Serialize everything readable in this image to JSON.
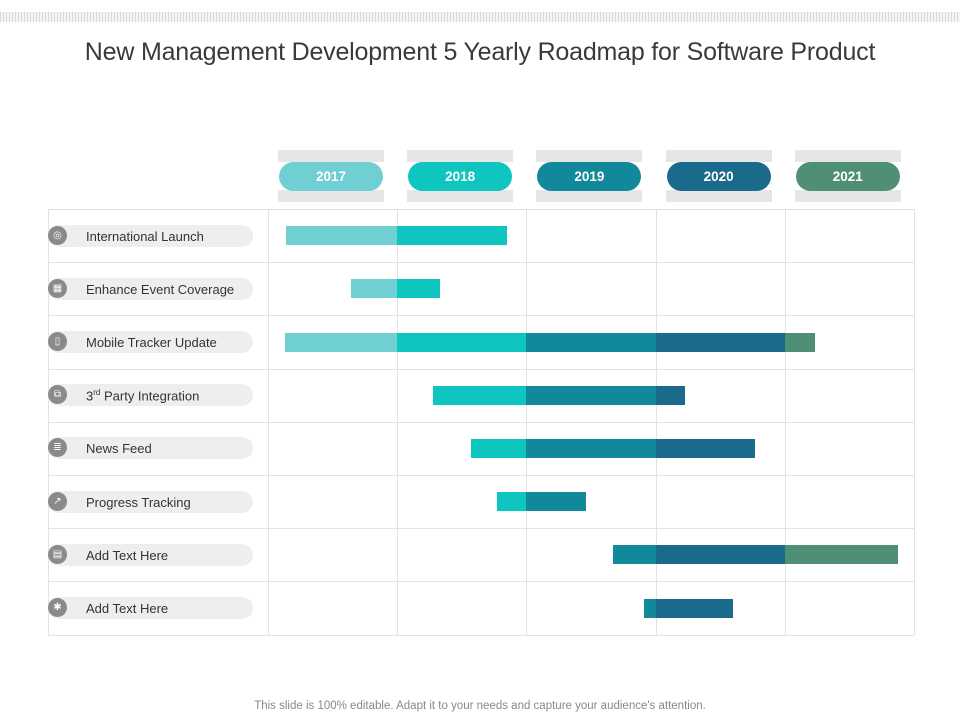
{
  "title": "New Management Development 5 Yearly Roadmap for Software Product",
  "footer": "This slide is 100% editable. Adapt it to your needs and capture your audience's attention.",
  "years": [
    {
      "label": "2017",
      "color": "#6fcfd3"
    },
    {
      "label": "2018",
      "color": "#0fc5c0"
    },
    {
      "label": "2019",
      "color": "#12899a"
    },
    {
      "label": "2020",
      "color": "#1a6a8c"
    },
    {
      "label": "2021",
      "color": "#4f8f76"
    }
  ],
  "tasks": [
    {
      "label_main": "International Launch",
      "icon": "globe-icon"
    },
    {
      "label_main": "Enhance Event Coverage",
      "icon": "calendar-icon"
    },
    {
      "label_main": "Mobile Tracker Update",
      "icon": "mobile-icon"
    },
    {
      "label_prefix": "3",
      "label_sup": "rd",
      "label_main": " Party Integration",
      "icon": "integration-icon"
    },
    {
      "label_main": "News Feed",
      "icon": "news-icon"
    },
    {
      "label_main": "Progress Tracking",
      "icon": "chart-icon"
    },
    {
      "label_main": "Add Text Here",
      "icon": "document-icon"
    },
    {
      "label_main": "Add Text Here",
      "icon": "settings-icon"
    }
  ],
  "chart_data": {
    "type": "gantt",
    "title": "New Management Development 5 Yearly Roadmap for Software Product",
    "x_axis": "year",
    "xlim": [
      2017,
      2022
    ],
    "categories": [
      "2017",
      "2018",
      "2019",
      "2020",
      "2021"
    ],
    "rows": [
      {
        "task": "International Launch",
        "start": 2017.14,
        "end": 2018.85
      },
      {
        "task": "Enhance Event Coverage",
        "start": 2017.64,
        "end": 2018.33
      },
      {
        "task": "Mobile Tracker Update",
        "start": 2017.13,
        "end": 2021.23
      },
      {
        "task": "3rd Party Integration",
        "start": 2018.28,
        "end": 2020.23
      },
      {
        "task": "News Feed",
        "start": 2018.57,
        "end": 2020.77
      },
      {
        "task": "Progress Tracking",
        "start": 2018.77,
        "end": 2019.46
      },
      {
        "task": "Add Text Here",
        "start": 2019.67,
        "end": 2021.88
      },
      {
        "task": "Add Text Here",
        "start": 2019.91,
        "end": 2020.6
      }
    ]
  }
}
